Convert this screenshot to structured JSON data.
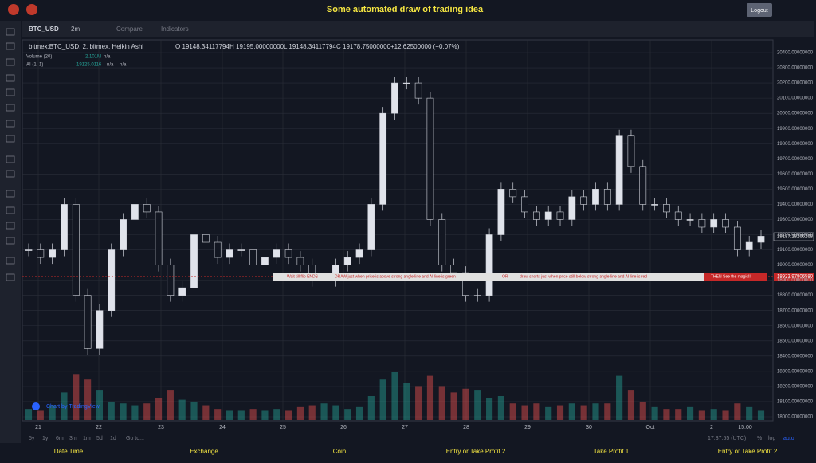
{
  "header": {
    "title": "Some automated draw of trading idea",
    "logout": "Logout"
  },
  "toolbar": {
    "symbol": "BTC_USD",
    "interval": "2m",
    "compare": "Compare",
    "indicators": "Indicators"
  },
  "legend": {
    "name": "bitmex:BTC_USD, 2, bitmex, Heikin Ashi",
    "open": "O 19148.34117794",
    "high": "H 19195.00000000",
    "low": "L 19148.34117794",
    "close": "C 19178.75000000",
    "change": "+12.62500000 (+0.07%)",
    "volume": "Volume (20)",
    "volume_value": "2.101M",
    "volume_na": "n/a",
    "ai": "AI (1, 1)",
    "ai_value": "19125.0116",
    "ai_na1": "n/a",
    "ai_na2": "n/a"
  },
  "annotation": {
    "step1": "Wait till flip ENDS",
    "step2": "DRAW just when price is above strong angle line and AI line is green",
    "or": "OR",
    "step3": "draw shorts just when price still below strong angle line and AI line is red",
    "final": "THEN See the magic!!"
  },
  "price_labels": {
    "current": "19187.28266268",
    "level": "18923.97806580"
  },
  "chart": {
    "ylim": [
      18000,
      20400
    ],
    "yticks": [
      {
        "value": 18000,
        "label": "18000.00000000"
      },
      {
        "value": 18100,
        "label": "18100.00000000"
      },
      {
        "value": 18200,
        "label": "18200.00000000"
      },
      {
        "value": 18300,
        "label": "18300.00000000"
      },
      {
        "value": 18400,
        "label": "18400.00000000"
      },
      {
        "value": 18500,
        "label": "18500.00000000"
      },
      {
        "value": 18600,
        "label": "18600.00000000"
      },
      {
        "value": 18700,
        "label": "18700.00000000"
      },
      {
        "value": 18800,
        "label": "18800.00000000"
      },
      {
        "value": 18900,
        "label": "18900.00000000"
      },
      {
        "value": 19000,
        "label": "19000.00000000"
      },
      {
        "value": 19100,
        "label": "19100.00000000"
      },
      {
        "value": 19200,
        "label": "19200.00000000"
      },
      {
        "value": 19300,
        "label": "19300.00000000"
      },
      {
        "value": 19400,
        "label": "19400.00000000"
      },
      {
        "value": 19500,
        "label": "19500.00000000"
      },
      {
        "value": 19600,
        "label": "19600.00000000"
      },
      {
        "value": 19700,
        "label": "19700.00000000"
      },
      {
        "value": 19800,
        "label": "19800.00000000"
      },
      {
        "value": 19900,
        "label": "19900.00000000"
      },
      {
        "value": 20000,
        "label": "20000.00000000"
      },
      {
        "value": 20100,
        "label": "20100.00000000"
      },
      {
        "value": 20200,
        "label": "20200.00000000"
      },
      {
        "value": 20300,
        "label": "20300.00000000"
      },
      {
        "value": 20400,
        "label": "20400.00000000"
      }
    ],
    "xticks": [
      "21",
      "22",
      "23",
      "24",
      "25",
      "26",
      "27",
      "28",
      "29",
      "30",
      "Oct",
      "2",
      "15:00"
    ],
    "prices": [
      19100,
      19050,
      19100,
      19400,
      18800,
      18450,
      18700,
      19100,
      19300,
      19400,
      19350,
      19000,
      18800,
      18850,
      19200,
      19150,
      19050,
      19100,
      19100,
      19000,
      19050,
      19100,
      19050,
      19000,
      18900,
      18900,
      19000,
      19050,
      19100,
      19400,
      20000,
      20200,
      20200,
      20100,
      19300,
      19000,
      18950,
      18800,
      18800,
      19200,
      19500,
      19450,
      19350,
      19300,
      19350,
      19300,
      19450,
      19400,
      19500,
      19400,
      19850,
      19650,
      19400,
      19400,
      19350,
      19300,
      19300,
      19250,
      19300,
      19250,
      19100,
      19150,
      19190
    ],
    "volumes": [
      0.6,
      0.5,
      0.8,
      1.5,
      2.5,
      2.2,
      1.6,
      1.0,
      0.9,
      0.8,
      0.9,
      1.2,
      1.6,
      1.1,
      1.0,
      0.8,
      0.6,
      0.5,
      0.5,
      0.6,
      0.5,
      0.6,
      0.5,
      0.7,
      0.8,
      0.9,
      0.8,
      0.6,
      0.7,
      1.3,
      2.2,
      2.6,
      2.0,
      1.8,
      2.4,
      1.8,
      1.5,
      1.7,
      1.6,
      1.2,
      1.3,
      0.9,
      0.8,
      0.9,
      0.7,
      0.8,
      0.9,
      0.8,
      0.9,
      0.9,
      2.4,
      1.6,
      1.0,
      0.7,
      0.6,
      0.6,
      0.7,
      0.5,
      0.6,
      0.5,
      0.9,
      0.7,
      0.5
    ]
  },
  "bottom": {
    "ranges": [
      "5y",
      "1y",
      "6m",
      "3m",
      "1m",
      "5d",
      "1d"
    ],
    "goto": "Go to...",
    "time": "17:37:55 (UTC)",
    "pct": "%",
    "log": "log",
    "auto": "auto"
  },
  "footer": [
    "Date Time",
    "Exchange",
    "Coin",
    "Entry or Take Profit 2",
    "Take Profit 1",
    "Entry or Take Profit 2"
  ],
  "watermark": "Chart by TradingView"
}
